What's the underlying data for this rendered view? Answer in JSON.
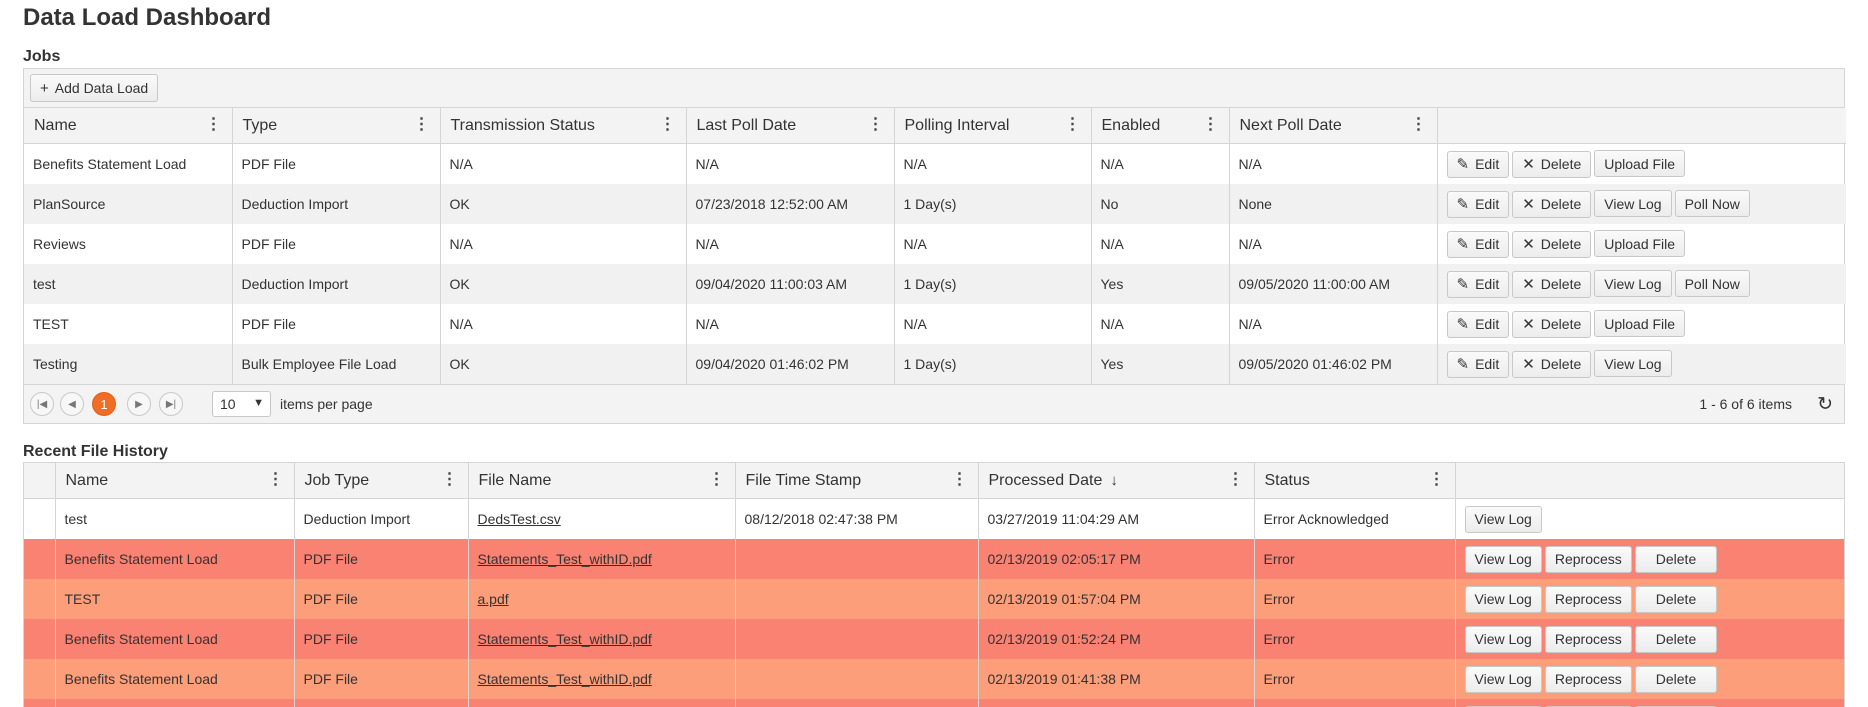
{
  "page": {
    "title": "Data Load Dashboard"
  },
  "jobs": {
    "section_title": "Jobs",
    "add_label": "Add Data Load",
    "columns": [
      "Name",
      "Type",
      "Transmission Status",
      "Last Poll Date",
      "Polling Interval",
      "Enabled",
      "Next Poll Date"
    ],
    "rows": [
      {
        "name": "Benefits Statement Load",
        "type": "PDF File",
        "status": "N/A",
        "last_poll": "N/A",
        "interval": "N/A",
        "enabled": "N/A",
        "next_poll": "N/A",
        "actions": [
          "Edit",
          "Delete",
          "Upload File"
        ]
      },
      {
        "name": "PlanSource",
        "type": "Deduction Import",
        "status": "OK",
        "last_poll": "07/23/2018 12:52:00 AM",
        "interval": "1 Day(s)",
        "enabled": "No",
        "next_poll": "None",
        "actions": [
          "Edit",
          "Delete",
          "View Log",
          "Poll Now"
        ]
      },
      {
        "name": "Reviews",
        "type": "PDF File",
        "status": "N/A",
        "last_poll": "N/A",
        "interval": "N/A",
        "enabled": "N/A",
        "next_poll": "N/A",
        "actions": [
          "Edit",
          "Delete",
          "Upload File"
        ]
      },
      {
        "name": "test",
        "type": "Deduction Import",
        "status": "OK",
        "last_poll": "09/04/2020 11:00:03 AM",
        "interval": "1 Day(s)",
        "enabled": "Yes",
        "next_poll": "09/05/2020 11:00:00 AM",
        "actions": [
          "Edit",
          "Delete",
          "View Log",
          "Poll Now"
        ]
      },
      {
        "name": "TEST",
        "type": "PDF File",
        "status": "N/A",
        "last_poll": "N/A",
        "interval": "N/A",
        "enabled": "N/A",
        "next_poll": "N/A",
        "actions": [
          "Edit",
          "Delete",
          "Upload File"
        ]
      },
      {
        "name": "Testing",
        "type": "Bulk Employee File Load",
        "status": "OK",
        "last_poll": "09/04/2020 01:46:02 PM",
        "interval": "1 Day(s)",
        "enabled": "Yes",
        "next_poll": "09/05/2020 01:46:02 PM",
        "actions": [
          "Edit",
          "Delete",
          "View Log"
        ]
      }
    ],
    "pager": {
      "current_page": "1",
      "page_size": "10",
      "items_per_page_label": "items per page",
      "info": "1 - 6 of 6 items"
    }
  },
  "history": {
    "section_title": "Recent File History",
    "columns": [
      "Name",
      "Job Type",
      "File Name",
      "File Time Stamp",
      "Processed Date",
      "Status"
    ],
    "rows": [
      {
        "name": "test",
        "job_type": "Deduction Import",
        "file_name": "DedsTest.csv",
        "file_ts": "08/12/2018 02:47:38 PM",
        "processed": "03/27/2019 11:04:29 AM",
        "status": "Error Acknowledged",
        "actions": [
          "View Log"
        ],
        "tone": "none"
      },
      {
        "name": "Benefits Statement Load",
        "job_type": "PDF File",
        "file_name": "Statements_Test_withID.pdf",
        "file_ts": "",
        "processed": "02/13/2019 02:05:17 PM",
        "status": "Error",
        "actions": [
          "View Log",
          "Reprocess",
          "Delete"
        ],
        "tone": "err"
      },
      {
        "name": "TEST",
        "job_type": "PDF File",
        "file_name": "a.pdf",
        "file_ts": "",
        "processed": "02/13/2019 01:57:04 PM",
        "status": "Error",
        "actions": [
          "View Log",
          "Reprocess",
          "Delete"
        ],
        "tone": "warn"
      },
      {
        "name": "Benefits Statement Load",
        "job_type": "PDF File",
        "file_name": "Statements_Test_withID.pdf",
        "file_ts": "",
        "processed": "02/13/2019 01:52:24 PM",
        "status": "Error",
        "actions": [
          "View Log",
          "Reprocess",
          "Delete"
        ],
        "tone": "err"
      },
      {
        "name": "Benefits Statement Load",
        "job_type": "PDF File",
        "file_name": "Statements_Test_withID.pdf",
        "file_ts": "",
        "processed": "02/13/2019 01:41:38 PM",
        "status": "Error",
        "actions": [
          "View Log",
          "Reprocess",
          "Delete"
        ],
        "tone": "warn"
      },
      {
        "name": "",
        "job_type": "",
        "file_name": "",
        "file_ts": "",
        "processed": "",
        "status": "",
        "actions": [
          "View Log",
          "Reprocess",
          "Delete"
        ],
        "tone": "err"
      }
    ]
  },
  "colors": {
    "accent": "#f06d25",
    "error_row": "#fa8272",
    "warn_row": "#fc9e7a",
    "disabled_cell": "#fca080"
  }
}
